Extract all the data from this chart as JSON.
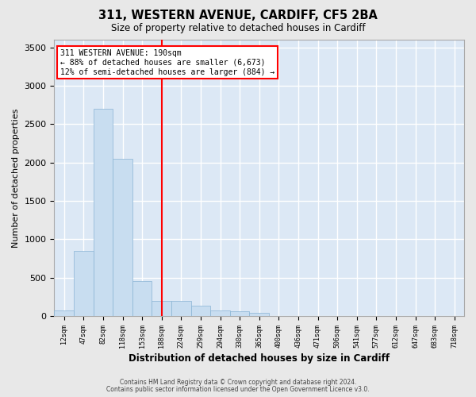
{
  "title": "311, WESTERN AVENUE, CARDIFF, CF5 2BA",
  "subtitle": "Size of property relative to detached houses in Cardiff",
  "xlabel": "Distribution of detached houses by size in Cardiff",
  "ylabel": "Number of detached properties",
  "bar_color": "#c8ddf0",
  "bar_edge_color": "#8ab4d4",
  "background_color": "#dce8f5",
  "fig_background": "#e8e8e8",
  "grid_color": "#ffffff",
  "annotation_line1": "311 WESTERN AVENUE: 190sqm",
  "annotation_line2": "← 88% of detached houses are smaller (6,673)",
  "annotation_line3": "12% of semi-detached houses are larger (884) →",
  "footnote1": "Contains HM Land Registry data © Crown copyright and database right 2024.",
  "footnote2": "Contains public sector information licensed under the Open Government Licence v3.0.",
  "bin_labels": [
    "12sqm",
    "47sqm",
    "82sqm",
    "118sqm",
    "153sqm",
    "188sqm",
    "224sqm",
    "259sqm",
    "294sqm",
    "330sqm",
    "365sqm",
    "400sqm",
    "436sqm",
    "471sqm",
    "506sqm",
    "541sqm",
    "577sqm",
    "612sqm",
    "647sqm",
    "683sqm",
    "718sqm"
  ],
  "bar_values": [
    75,
    850,
    2700,
    2050,
    450,
    200,
    190,
    130,
    75,
    60,
    40,
    0,
    0,
    0,
    0,
    0,
    0,
    0,
    0,
    0,
    0
  ],
  "ylim": [
    0,
    3600
  ],
  "yticks": [
    0,
    500,
    1000,
    1500,
    2000,
    2500,
    3000,
    3500
  ],
  "red_line_x": 5.5
}
